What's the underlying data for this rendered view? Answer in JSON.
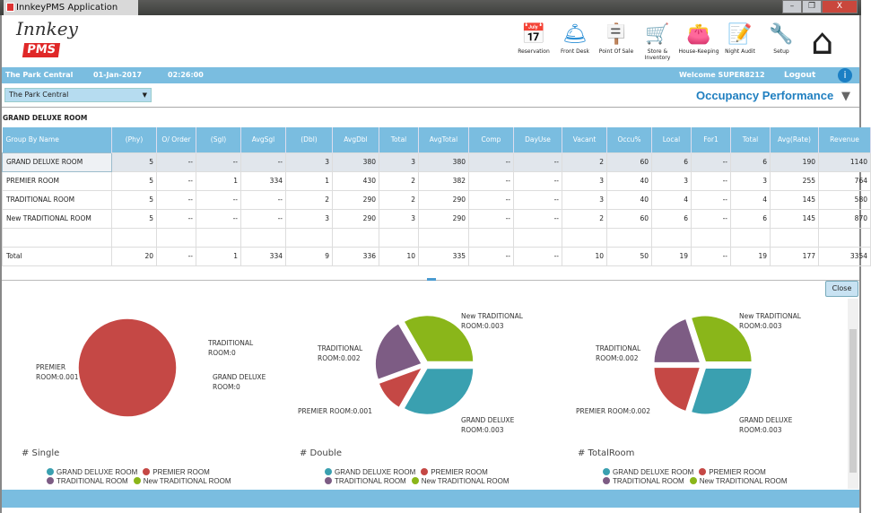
{
  "window": {
    "title": "InnkeyPMS Application",
    "min": "–",
    "max": "❐",
    "close": "X"
  },
  "logo": {
    "script": "Innkey",
    "badge": "PMS"
  },
  "toolbar": [
    {
      "label": "Reservation",
      "icon": "calendar-icon",
      "glyph": "📅"
    },
    {
      "label": "Front Desk",
      "icon": "bell-icon",
      "glyph": "🛎"
    },
    {
      "label": "Point Of Sale",
      "icon": "open-sign-icon",
      "glyph": "🪧"
    },
    {
      "label": "Store & Inventory",
      "icon": "cart-icon",
      "glyph": "🛒"
    },
    {
      "label": "House-Keeping",
      "icon": "wallet-icon",
      "glyph": "👛"
    },
    {
      "label": "Night Audit",
      "icon": "checklist-icon",
      "glyph": "📝"
    },
    {
      "label": "Setup",
      "icon": "tools-icon",
      "glyph": "🔧"
    }
  ],
  "home_glyph": "⌂",
  "infobar": {
    "hotel": "The Park Central",
    "date": "01-Jan-2017",
    "time": "02:26:00",
    "welcome": "Welcome SUPER8212",
    "logout": "Logout",
    "info": "i"
  },
  "hotel_select": {
    "value": "The Park Central",
    "arrow": "▼"
  },
  "page_title": "Occupancy Performance",
  "filter_glyph": "▼",
  "section_title": "GRAND DELUXE ROOM",
  "table": {
    "headers": [
      "Group By Name",
      "(Phy)",
      "O/ Order",
      "(Sgl)",
      "AvgSgl",
      "(Dbl)",
      "AvgDbl",
      "Total",
      "AvgTotal",
      "Comp",
      "DayUse",
      "Vacant",
      "Occu%",
      "Local",
      "For1",
      "Total",
      "Avg(Rate)",
      "Revenue"
    ],
    "rows": [
      [
        "GRAND DELUXE ROOM",
        "5",
        "--",
        "--",
        "--",
        "3",
        "380",
        "3",
        "380",
        "--",
        "--",
        "2",
        "60",
        "6",
        "--",
        "6",
        "190",
        "1140"
      ],
      [
        "PREMIER ROOM",
        "5",
        "--",
        "1",
        "334",
        "1",
        "430",
        "2",
        "382",
        "--",
        "--",
        "3",
        "40",
        "3",
        "--",
        "3",
        "255",
        "764"
      ],
      [
        "TRADITIONAL ROOM",
        "5",
        "--",
        "--",
        "--",
        "2",
        "290",
        "2",
        "290",
        "--",
        "--",
        "3",
        "40",
        "4",
        "--",
        "4",
        "145",
        "580"
      ],
      [
        "New TRADITIONAL ROOM",
        "5",
        "--",
        "--",
        "--",
        "3",
        "290",
        "3",
        "290",
        "--",
        "--",
        "2",
        "60",
        "6",
        "--",
        "6",
        "145",
        "870"
      ],
      [
        "",
        "",
        "",
        "",
        "",
        "",
        "",
        "",
        "",
        "",
        "",
        "",
        "",
        "",
        "",
        "",
        "",
        ""
      ],
      [
        "Total",
        "20",
        "--",
        "1",
        "334",
        "9",
        "336",
        "10",
        "335",
        "--",
        "--",
        "10",
        "50",
        "19",
        "--",
        "19",
        "177",
        "3354"
      ]
    ]
  },
  "close_label": "Close",
  "chart_data": [
    {
      "type": "pie",
      "title": "# Single",
      "categories": [
        "GRAND DELUXE ROOM",
        "PREMIER ROOM",
        "TRADITIONAL ROOM",
        "New TRADITIONAL ROOM"
      ],
      "values": [
        0,
        1,
        0,
        0
      ],
      "data_labels": [
        "GRAND DELUXE ROOM:0",
        "PREMIER ROOM:0.001",
        "TRADITIONAL ROOM:0",
        ""
      ],
      "legend": "bottom"
    },
    {
      "type": "pie",
      "title": "# Double",
      "categories": [
        "GRAND DELUXE ROOM",
        "PREMIER ROOM",
        "TRADITIONAL ROOM",
        "New TRADITIONAL ROOM"
      ],
      "values": [
        3,
        1,
        2,
        3
      ],
      "data_labels": [
        "GRAND DELUXE ROOM:0.003",
        "PREMIER ROOM:0.001",
        "TRADITIONAL ROOM:0.002",
        "New TRADITIONAL ROOM:0.003"
      ],
      "legend": "bottom"
    },
    {
      "type": "pie",
      "title": "# TotalRoom",
      "categories": [
        "GRAND DELUXE ROOM",
        "PREMIER ROOM",
        "TRADITIONAL ROOM",
        "New TRADITIONAL ROOM"
      ],
      "values": [
        3,
        2,
        2,
        3
      ],
      "data_labels": [
        "GRAND DELUXE ROOM:0.003",
        "PREMIER ROOM:0.002",
        "TRADITIONAL ROOM:0.002",
        "New TRADITIONAL ROOM:0.003"
      ],
      "legend": "bottom"
    }
  ],
  "colors": [
    "#3aa0b0",
    "#c54845",
    "#7d5c84",
    "#8ab61a"
  ]
}
